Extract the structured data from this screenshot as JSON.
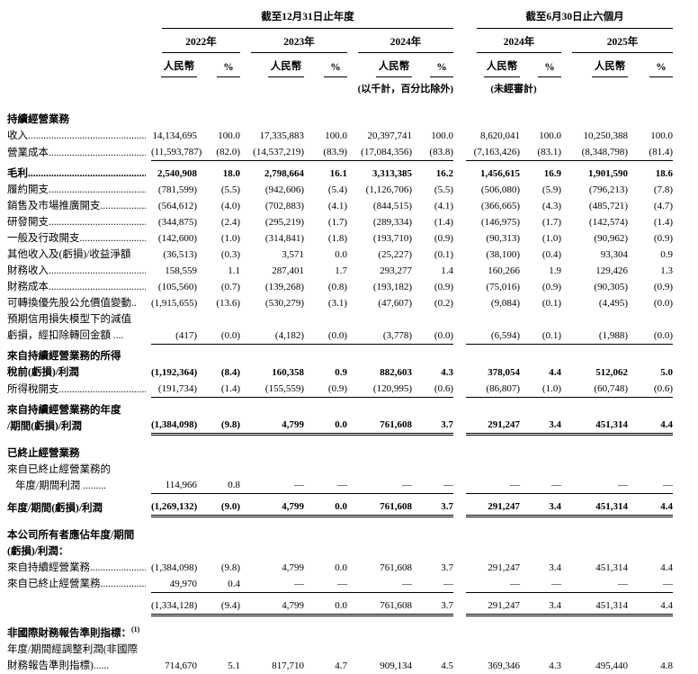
{
  "header": {
    "period_annual": "截至12月31日止年度",
    "period_interim": "截至6月30日止六個月",
    "years": [
      "2022年",
      "2023年",
      "2024年",
      "2024年",
      "2025年"
    ],
    "col_currency": "人民幣",
    "col_pct": "%",
    "note_units": "(以千計，百分比除外)",
    "note_unaudited": "(未經審計)"
  },
  "rows": [
    {
      "type": "section",
      "bold": true,
      "label": "持續經營業務"
    },
    {
      "type": "item",
      "label": "收入................................................",
      "values": [
        "14,134,695",
        "100.0",
        "17,335,883",
        "100.0",
        "20,397,741",
        "100.0",
        "8,620,041",
        "100.0",
        "10,250,388",
        "100.0"
      ]
    },
    {
      "type": "item",
      "label": "營業成本............................................",
      "values": [
        "(11,593,787)",
        "(82.0)",
        "(14,537,219)",
        "(83.9)",
        "(17,084,356)",
        "(83.8)",
        "(7,163,426)",
        "(83.1)",
        "(8,348,798)",
        "(81.4)"
      ]
    },
    {
      "type": "total",
      "bold": true,
      "topline": true,
      "label": "毛利................................................",
      "values": [
        "2,540,908",
        "18.0",
        "2,798,664",
        "16.1",
        "3,313,385",
        "16.2",
        "1,456,615",
        "16.9",
        "1,901,590",
        "18.6"
      ]
    },
    {
      "type": "item",
      "label": "履約開支............................................",
      "values": [
        "(781,599)",
        "(5.5)",
        "(942,606)",
        "(5.4)",
        "(1,126,706)",
        "(5.5)",
        "(506,080)",
        "(5.9)",
        "(796,213)",
        "(7.8)"
      ]
    },
    {
      "type": "item",
      "label": "銷售及市場推廣開支....................",
      "values": [
        "(564,612)",
        "(4.0)",
        "(702,883)",
        "(4.1)",
        "(844,515)",
        "(4.1)",
        "(366,665)",
        "(4.3)",
        "(485,721)",
        "(4.7)"
      ]
    },
    {
      "type": "item",
      "label": "研發開支............................................",
      "values": [
        "(344,875)",
        "(2.4)",
        "(295,219)",
        "(1.7)",
        "(289,334)",
        "(1.4)",
        "(146,975)",
        "(1.7)",
        "(142,574)",
        "(1.4)"
      ]
    },
    {
      "type": "item",
      "label": "一般及行政開支..............................",
      "values": [
        "(142,600)",
        "(1.0)",
        "(314,841)",
        "(1.8)",
        "(193,710)",
        "(0.9)",
        "(90,313)",
        "(1.0)",
        "(90,962)",
        "(0.9)"
      ]
    },
    {
      "type": "item",
      "label": "其他收入及(虧損)/收益淨額",
      "values": [
        "(36,513)",
        "(0.3)",
        "3,571",
        "0.0",
        "(25,227)",
        "(0.1)",
        "(38,100)",
        "(0.4)",
        "93,304",
        "0.9"
      ]
    },
    {
      "type": "item",
      "label": "財務收入............................................",
      "values": [
        "158,559",
        "1.1",
        "287,401",
        "1.7",
        "293,277",
        "1.4",
        "160,266",
        "1.9",
        "129,426",
        "1.3"
      ]
    },
    {
      "type": "item",
      "label": "財務成本............................................",
      "values": [
        "(105,560)",
        "(0.7)",
        "(139,268)",
        "(0.8)",
        "(193,182)",
        "(0.9)",
        "(75,016)",
        "(0.9)",
        "(90,305)",
        "(0.9)"
      ]
    },
    {
      "type": "item",
      "label": "可轉換優先股公允價值變動..",
      "values": [
        "(1,915,655)",
        "(13.6)",
        "(530,279)",
        "(3.1)",
        "(47,607)",
        "(0.2)",
        "(9,084)",
        "(0.1)",
        "(4,495)",
        "(0.0)"
      ]
    },
    {
      "type": "item",
      "label": [
        "預期信用損失模型下的減值",
        "虧損，經扣除轉回金額 ...."
      ],
      "values": [
        "(417)",
        "(0.0)",
        "(4,182)",
        "(0.0)",
        "(3,778)",
        "(0.0)",
        "(6,594)",
        "(0.1)",
        "(1,988)",
        "(0.0)"
      ]
    },
    {
      "type": "total",
      "bold": true,
      "topline": true,
      "label": [
        "來自持續經營業務的所得",
        "稅前(虧損)/利潤"
      ],
      "values": [
        "(1,192,364)",
        "(8.4)",
        "160,358",
        "0.9",
        "882,603",
        "4.3",
        "378,054",
        "4.4",
        "512,062",
        "5.0"
      ]
    },
    {
      "type": "item",
      "label": "所得稅開支........................................",
      "values": [
        "(191,734)",
        "(1.4)",
        "(155,559)",
        "(0.9)",
        "(120,995)",
        "(0.6)",
        "(86,807)",
        "(1.0)",
        "(60,748)",
        "(0.6)"
      ]
    },
    {
      "type": "total",
      "bold": true,
      "topline": true,
      "dbl": true,
      "label": [
        "來自持續經營業務的年度",
        "/期間(虧損)/利潤"
      ],
      "values": [
        "(1,384,098)",
        "(9.8)",
        "4,799",
        "0.0",
        "761,608",
        "3.7",
        "291,247",
        "3.4",
        "451,314",
        "4.4"
      ]
    },
    {
      "type": "gap"
    },
    {
      "type": "section",
      "bold": true,
      "label": "已終止經營業務"
    },
    {
      "type": "item",
      "indent": true,
      "label": [
        "來自已終止經營業務的",
        "年度/期間利潤 ........."
      ],
      "values": [
        "114,966",
        "0.8",
        "—",
        "—",
        "—",
        "—",
        "—",
        "—",
        "—",
        "—"
      ]
    },
    {
      "type": "total",
      "bold": true,
      "topline": true,
      "dbl": true,
      "label": "年度/期間(虧損)/利潤",
      "values": [
        "(1,269,132)",
        "(9.0)",
        "4,799",
        "0.0",
        "761,608",
        "3.7",
        "291,247",
        "3.4",
        "451,314",
        "4.4"
      ]
    },
    {
      "type": "gap"
    },
    {
      "type": "section",
      "bold": true,
      "label": [
        "本公司所有者應佔年度/期間",
        "(虧損)/利潤："
      ]
    },
    {
      "type": "item",
      "label": "來自持續經營業務..........................",
      "values": [
        "(1,384,098)",
        "(9.8)",
        "4,799",
        "0.0",
        "761,608",
        "3.7",
        "291,247",
        "3.4",
        "451,314",
        "4.4"
      ]
    },
    {
      "type": "item",
      "label": "來自已終止經營業務......................",
      "values": [
        "49,970",
        "0.4",
        "—",
        "—",
        "—",
        "—",
        "—",
        "—",
        "—",
        "—"
      ]
    },
    {
      "type": "total",
      "topline": true,
      "dbl": true,
      "label": "",
      "values": [
        "(1,334,128)",
        "(9.4)",
        "4,799",
        "0.0",
        "761,608",
        "3.7",
        "291,247",
        "3.4",
        "451,314",
        "4.4"
      ]
    },
    {
      "type": "gap"
    },
    {
      "type": "section",
      "bold": true,
      "label": "非國際財務報告準則指標：",
      "sup": "(1)"
    },
    {
      "type": "item",
      "label": [
        "年度/期間經調整利潤(非國際",
        "財務報告準則指標)......"
      ],
      "values": [
        "714,670",
        "5.1",
        "817,710",
        "4.7",
        "909,134",
        "4.5",
        "369,346",
        "4.3",
        "495,440",
        "4.8"
      ]
    }
  ]
}
